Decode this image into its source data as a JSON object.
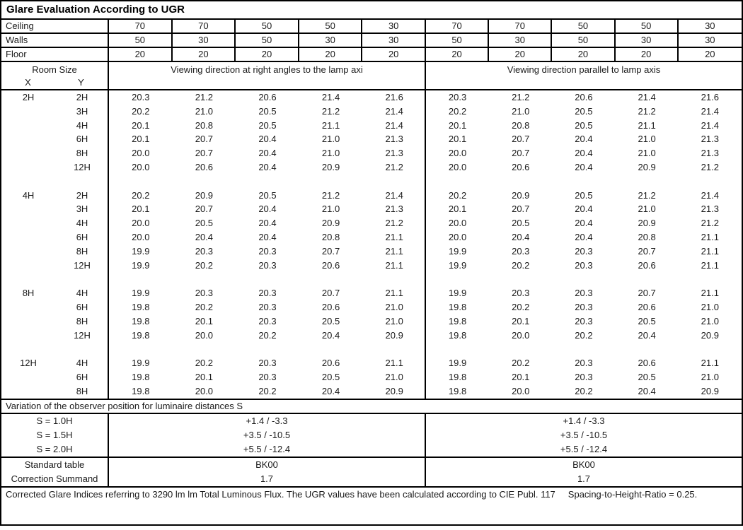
{
  "title": "Glare Evaluation According to UGR",
  "surface_rows": [
    {
      "label": "Ceiling",
      "values": [
        "70",
        "70",
        "50",
        "50",
        "30",
        "70",
        "70",
        "50",
        "50",
        "30"
      ]
    },
    {
      "label": "Walls",
      "values": [
        "50",
        "30",
        "50",
        "30",
        "30",
        "50",
        "30",
        "50",
        "30",
        "30"
      ]
    },
    {
      "label": "Floor",
      "values": [
        "20",
        "20",
        "20",
        "20",
        "20",
        "20",
        "20",
        "20",
        "20",
        "20"
      ]
    }
  ],
  "headers": {
    "room_size": "Room Size",
    "x": "X",
    "y": "Y",
    "right_angle": "Viewing direction at right angles to the lamp axi",
    "parallel": "Viewing direction parallel to lamp axis"
  },
  "ugr_groups": [
    {
      "x": "2H",
      "rows": [
        {
          "y": "2H",
          "right_angle": [
            "20.3",
            "21.2",
            "20.6",
            "21.4",
            "21.6"
          ],
          "parallel": [
            "20.3",
            "21.2",
            "20.6",
            "21.4",
            "21.6"
          ]
        },
        {
          "y": "3H",
          "right_angle": [
            "20.2",
            "21.0",
            "20.5",
            "21.2",
            "21.4"
          ],
          "parallel": [
            "20.2",
            "21.0",
            "20.5",
            "21.2",
            "21.4"
          ]
        },
        {
          "y": "4H",
          "right_angle": [
            "20.1",
            "20.8",
            "20.5",
            "21.1",
            "21.4"
          ],
          "parallel": [
            "20.1",
            "20.8",
            "20.5",
            "21.1",
            "21.4"
          ]
        },
        {
          "y": "6H",
          "right_angle": [
            "20.1",
            "20.7",
            "20.4",
            "21.0",
            "21.3"
          ],
          "parallel": [
            "20.1",
            "20.7",
            "20.4",
            "21.0",
            "21.3"
          ]
        },
        {
          "y": "8H",
          "right_angle": [
            "20.0",
            "20.7",
            "20.4",
            "21.0",
            "21.3"
          ],
          "parallel": [
            "20.0",
            "20.7",
            "20.4",
            "21.0",
            "21.3"
          ]
        },
        {
          "y": "12H",
          "right_angle": [
            "20.0",
            "20.6",
            "20.4",
            "20.9",
            "21.2"
          ],
          "parallel": [
            "20.0",
            "20.6",
            "20.4",
            "20.9",
            "21.2"
          ]
        }
      ]
    },
    {
      "x": "4H",
      "rows": [
        {
          "y": "2H",
          "right_angle": [
            "20.2",
            "20.9",
            "20.5",
            "21.2",
            "21.4"
          ],
          "parallel": [
            "20.2",
            "20.9",
            "20.5",
            "21.2",
            "21.4"
          ]
        },
        {
          "y": "3H",
          "right_angle": [
            "20.1",
            "20.7",
            "20.4",
            "21.0",
            "21.3"
          ],
          "parallel": [
            "20.1",
            "20.7",
            "20.4",
            "21.0",
            "21.3"
          ]
        },
        {
          "y": "4H",
          "right_angle": [
            "20.0",
            "20.5",
            "20.4",
            "20.9",
            "21.2"
          ],
          "parallel": [
            "20.0",
            "20.5",
            "20.4",
            "20.9",
            "21.2"
          ]
        },
        {
          "y": "6H",
          "right_angle": [
            "20.0",
            "20.4",
            "20.4",
            "20.8",
            "21.1"
          ],
          "parallel": [
            "20.0",
            "20.4",
            "20.4",
            "20.8",
            "21.1"
          ]
        },
        {
          "y": "8H",
          "right_angle": [
            "19.9",
            "20.3",
            "20.3",
            "20.7",
            "21.1"
          ],
          "parallel": [
            "19.9",
            "20.3",
            "20.3",
            "20.7",
            "21.1"
          ]
        },
        {
          "y": "12H",
          "right_angle": [
            "19.9",
            "20.2",
            "20.3",
            "20.6",
            "21.1"
          ],
          "parallel": [
            "19.9",
            "20.2",
            "20.3",
            "20.6",
            "21.1"
          ]
        }
      ]
    },
    {
      "x": "8H",
      "rows": [
        {
          "y": "4H",
          "right_angle": [
            "19.9",
            "20.3",
            "20.3",
            "20.7",
            "21.1"
          ],
          "parallel": [
            "19.9",
            "20.3",
            "20.3",
            "20.7",
            "21.1"
          ]
        },
        {
          "y": "6H",
          "right_angle": [
            "19.8",
            "20.2",
            "20.3",
            "20.6",
            "21.0"
          ],
          "parallel": [
            "19.8",
            "20.2",
            "20.3",
            "20.6",
            "21.0"
          ]
        },
        {
          "y": "8H",
          "right_angle": [
            "19.8",
            "20.1",
            "20.3",
            "20.5",
            "21.0"
          ],
          "parallel": [
            "19.8",
            "20.1",
            "20.3",
            "20.5",
            "21.0"
          ]
        },
        {
          "y": "12H",
          "right_angle": [
            "19.8",
            "20.0",
            "20.2",
            "20.4",
            "20.9"
          ],
          "parallel": [
            "19.8",
            "20.0",
            "20.2",
            "20.4",
            "20.9"
          ]
        }
      ]
    },
    {
      "x": "12H",
      "rows": [
        {
          "y": "4H",
          "right_angle": [
            "19.9",
            "20.2",
            "20.3",
            "20.6",
            "21.1"
          ],
          "parallel": [
            "19.9",
            "20.2",
            "20.3",
            "20.6",
            "21.1"
          ]
        },
        {
          "y": "6H",
          "right_angle": [
            "19.8",
            "20.1",
            "20.3",
            "20.5",
            "21.0"
          ],
          "parallel": [
            "19.8",
            "20.1",
            "20.3",
            "20.5",
            "21.0"
          ]
        },
        {
          "y": "8H",
          "right_angle": [
            "19.8",
            "20.0",
            "20.2",
            "20.4",
            "20.9"
          ],
          "parallel": [
            "19.8",
            "20.0",
            "20.2",
            "20.4",
            "20.9"
          ]
        }
      ]
    }
  ],
  "variation_heading": "Variation of the observer position for luminaire distances S",
  "variation_rows": [
    {
      "label": "S = 1.0H",
      "right_angle": "+1.4 / -3.3",
      "parallel": "+1.4 / -3.3"
    },
    {
      "label": "S = 1.5H",
      "right_angle": "+3.5 / -10.5",
      "parallel": "+3.5 / -10.5"
    },
    {
      "label": "S = 2.0H",
      "right_angle": "+5.5 / -12.4",
      "parallel": "+5.5 / -12.4"
    }
  ],
  "summary_rows": [
    {
      "label": "Standard table",
      "right_angle": "BK00",
      "parallel": "BK00"
    },
    {
      "label": "Correction Summand",
      "right_angle": "1.7",
      "parallel": "1.7"
    }
  ],
  "footer": {
    "text": "Corrected Glare Indices referring to 3290 lm lm Total Luminous Flux. The UGR values have been calculated according to CIE Publ. 117",
    "ratio": "Spacing-to-Height-Ratio = 0.25."
  }
}
